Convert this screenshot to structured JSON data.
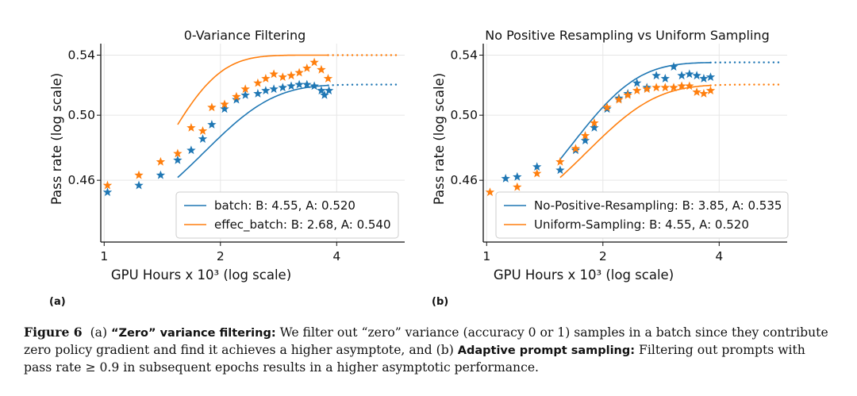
{
  "colors": {
    "blue": "#1f77b4",
    "orange": "#ff7f0e",
    "grid": "#e6e6e6"
  },
  "chart_data": [
    {
      "type": "scatter",
      "title": "0-Variance Filtering",
      "xlabel": "GPU Hours x 10³ (log scale)",
      "ylabel": "Pass rate (log scale)",
      "xscale": "log",
      "yscale": "log",
      "xlim": [
        0.98,
        6.0
      ],
      "ylim": [
        0.425,
        0.548
      ],
      "xticks": [
        {
          "value": 1,
          "label": "1"
        },
        {
          "value": 2,
          "label": "2"
        },
        {
          "value": 4,
          "label": "4"
        }
      ],
      "yticks": [
        {
          "value": 0.46,
          "label": "0.46"
        },
        {
          "value": 0.5,
          "label": "0.50"
        },
        {
          "value": 0.54,
          "label": "0.54"
        }
      ],
      "grid": true,
      "legend_position": "lower-right",
      "panel_label": "(a)",
      "series": [
        {
          "name": "batch: B: 4.55, A: 0.520",
          "color": "blue",
          "points": [
            [
              1.02,
              0.453
            ],
            [
              1.23,
              0.457
            ],
            [
              1.4,
              0.463
            ],
            [
              1.55,
              0.472
            ],
            [
              1.68,
              0.478
            ],
            [
              1.8,
              0.485
            ],
            [
              1.9,
              0.494
            ],
            [
              2.05,
              0.504
            ],
            [
              2.2,
              0.51
            ],
            [
              2.32,
              0.513
            ],
            [
              2.5,
              0.514
            ],
            [
              2.62,
              0.516
            ],
            [
              2.75,
              0.517
            ],
            [
              2.9,
              0.518
            ],
            [
              3.05,
              0.519
            ],
            [
              3.2,
              0.52
            ],
            [
              3.35,
              0.52
            ],
            [
              3.5,
              0.519
            ],
            [
              3.65,
              0.516
            ],
            [
              3.72,
              0.513
            ],
            [
              3.82,
              0.516
            ]
          ],
          "fit": {
            "A": 0.52,
            "B": 4.55,
            "x_start": 1.55,
            "x_solid_end": 3.8,
            "x_end": 5.8
          }
        },
        {
          "name": "effec_batch: B: 2.68, A: 0.540",
          "color": "orange",
          "points": [
            [
              1.02,
              0.457
            ],
            [
              1.23,
              0.463
            ],
            [
              1.4,
              0.471
            ],
            [
              1.55,
              0.476
            ],
            [
              1.68,
              0.492
            ],
            [
              1.8,
              0.49
            ],
            [
              1.9,
              0.505
            ],
            [
              2.05,
              0.507
            ],
            [
              2.2,
              0.512
            ],
            [
              2.32,
              0.517
            ],
            [
              2.5,
              0.521
            ],
            [
              2.62,
              0.524
            ],
            [
              2.75,
              0.527
            ],
            [
              2.9,
              0.525
            ],
            [
              3.05,
              0.526
            ],
            [
              3.2,
              0.528
            ],
            [
              3.35,
              0.531
            ],
            [
              3.5,
              0.535
            ],
            [
              3.65,
              0.53
            ],
            [
              3.8,
              0.524
            ]
          ],
          "fit": {
            "A": 0.54,
            "B": 2.68,
            "x_start": 1.55,
            "x_solid_end": 3.8,
            "x_end": 5.8
          }
        }
      ]
    },
    {
      "type": "scatter",
      "title": "No Positive Resampling vs Uniform Sampling",
      "xlabel": "GPU Hours x 10³ (log scale)",
      "ylabel": "Pass rate (log scale)",
      "xscale": "log",
      "yscale": "log",
      "xlim": [
        0.98,
        6.0
      ],
      "ylim": [
        0.425,
        0.548
      ],
      "xticks": [
        {
          "value": 1,
          "label": "1"
        },
        {
          "value": 2,
          "label": "2"
        },
        {
          "value": 4,
          "label": "4"
        }
      ],
      "yticks": [
        {
          "value": 0.46,
          "label": "0.46"
        },
        {
          "value": 0.5,
          "label": "0.50"
        },
        {
          "value": 0.54,
          "label": "0.54"
        }
      ],
      "grid": true,
      "legend_position": "lower-left",
      "panel_label": "(b)",
      "series": [
        {
          "name": "No-Positive-Resampling: B: 3.85, A: 0.535",
          "color": "blue",
          "points": [
            [
              1.12,
              0.461
            ],
            [
              1.2,
              0.462
            ],
            [
              1.35,
              0.468
            ],
            [
              1.55,
              0.466
            ],
            [
              1.7,
              0.478
            ],
            [
              1.8,
              0.484
            ],
            [
              1.9,
              0.492
            ],
            [
              2.05,
              0.504
            ],
            [
              2.2,
              0.511
            ],
            [
              2.32,
              0.514
            ],
            [
              2.45,
              0.521
            ],
            [
              2.6,
              0.518
            ],
            [
              2.75,
              0.526
            ],
            [
              2.9,
              0.524
            ],
            [
              3.05,
              0.532
            ],
            [
              3.2,
              0.526
            ],
            [
              3.35,
              0.527
            ],
            [
              3.5,
              0.526
            ],
            [
              3.65,
              0.524
            ],
            [
              3.8,
              0.525
            ]
          ],
          "fit": {
            "A": 0.535,
            "B": 3.85,
            "x_start": 1.55,
            "x_solid_end": 3.8,
            "x_end": 5.8
          }
        },
        {
          "name": "Uniform-Sampling: B: 4.55, A: 0.520",
          "color": "orange",
          "points": [
            [
              1.02,
              0.453
            ],
            [
              1.2,
              0.456
            ],
            [
              1.35,
              0.464
            ],
            [
              1.55,
              0.471
            ],
            [
              1.7,
              0.479
            ],
            [
              1.8,
              0.487
            ],
            [
              1.9,
              0.495
            ],
            [
              2.05,
              0.505
            ],
            [
              2.2,
              0.51
            ],
            [
              2.32,
              0.513
            ],
            [
              2.45,
              0.516
            ],
            [
              2.6,
              0.517
            ],
            [
              2.75,
              0.518
            ],
            [
              2.9,
              0.518
            ],
            [
              3.05,
              0.518
            ],
            [
              3.2,
              0.519
            ],
            [
              3.35,
              0.519
            ],
            [
              3.5,
              0.515
            ],
            [
              3.65,
              0.514
            ],
            [
              3.8,
              0.516
            ]
          ],
          "fit": {
            "A": 0.52,
            "B": 4.55,
            "x_start": 1.55,
            "x_solid_end": 3.8,
            "x_end": 5.8
          }
        }
      ]
    }
  ],
  "caption": {
    "label": "Figure 6",
    "part_a": "(a)",
    "bold_a": "“Zero” variance filtering:",
    "text_a": " We filter out “zero” variance (accuracy 0 or 1) samples in a batch since they contribute zero policy gradient and find it achieves a higher asymptote, and ",
    "part_b": "(b)",
    "bold_b": "Adaptive prompt sampling:",
    "text_b": " Filtering out prompts with pass rate ≥ 0.9 in subsequent epochs results in a higher asymptotic performance."
  }
}
